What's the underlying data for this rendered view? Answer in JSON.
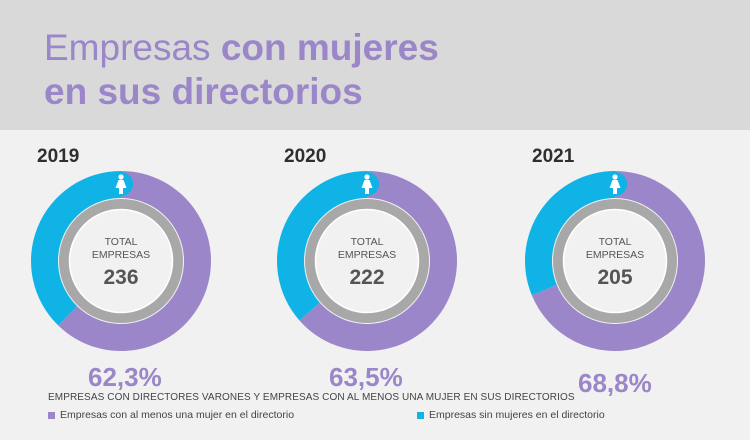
{
  "title": {
    "line1_light": "Empresas",
    "line1_bold": "con mujeres",
    "line2_bold": "en sus directorios"
  },
  "center_label": [
    "TOTAL",
    "EMPRESAS"
  ],
  "colors": {
    "purple": "#9b86c9",
    "cyan": "#0fb3e6",
    "ring": "#a8a8a8"
  },
  "chart_data": [
    {
      "type": "pie",
      "year": "2019",
      "total": "236",
      "pct_label": "62,3%",
      "series": [
        {
          "name": "Empresas con al menos una mujer en el directorio",
          "value": 62.3
        },
        {
          "name": "Empresas sin mujeres en el directorio",
          "value": 37.7
        }
      ]
    },
    {
      "type": "pie",
      "year": "2020",
      "total": "222",
      "pct_label": "63,5%",
      "series": [
        {
          "name": "Empresas con al menos una mujer en el directorio",
          "value": 63.5
        },
        {
          "name": "Empresas sin mujeres en el directorio",
          "value": 36.5
        }
      ]
    },
    {
      "type": "pie",
      "year": "2021",
      "total": "205",
      "pct_label": "68,8%",
      "series": [
        {
          "name": "Empresas con al menos una mujer en el directorio",
          "value": 68.8
        },
        {
          "name": "Empresas sin mujeres en el directorio",
          "value": 31.2
        }
      ]
    }
  ],
  "legend": {
    "title": "EMPRESAS CON DIRECTORES VARONES Y EMPRESAS CON AL MENOS UNA MUJER EN SUS DIRECTORIOS",
    "items": [
      {
        "label": "Empresas con al menos una mujer en el directorio",
        "color": "#9b86c9"
      },
      {
        "label": "Empresas sin mujeres en el directorio",
        "color": "#0fb3e6"
      }
    ]
  }
}
